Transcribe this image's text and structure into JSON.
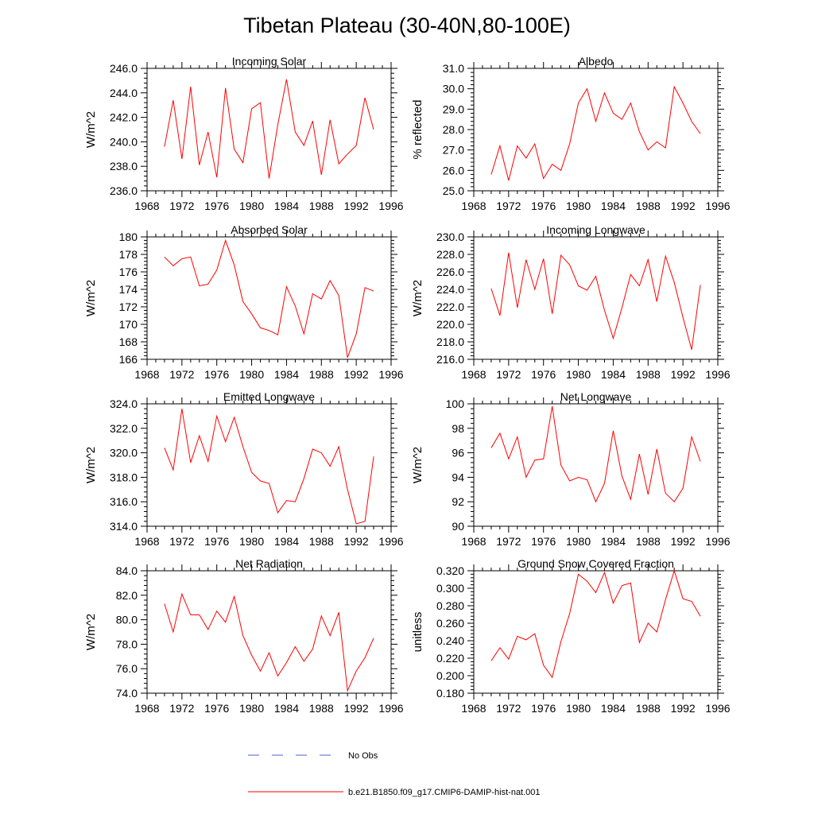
{
  "title": "Tibetan Plateau (30-40N,80-100E)",
  "years": [
    1970,
    1971,
    1972,
    1973,
    1974,
    1975,
    1976,
    1977,
    1978,
    1979,
    1980,
    1981,
    1982,
    1983,
    1984,
    1985,
    1986,
    1987,
    1988,
    1989,
    1990,
    1991,
    1992,
    1993,
    1994
  ],
  "chart_data": [
    {
      "type": "line",
      "title": "Incoming Solar",
      "ylabel": "W/m^2",
      "xlim": [
        1968,
        1996
      ],
      "ylim": [
        236.0,
        246.0
      ],
      "x_ticks": [
        "1968",
        "1972",
        "1976",
        "1980",
        "1984",
        "1988",
        "1992",
        "1996"
      ],
      "y_ticks": [
        "236.0",
        "238.0",
        "240.0",
        "242.0",
        "244.0",
        "246.0"
      ],
      "series": [
        {
          "name": "b.e21.B1850.f09_g17.CMIP6-DAMIP-hist-nat.001",
          "color": "#ff0000",
          "values": [
            239.6,
            243.4,
            238.6,
            244.5,
            238.1,
            240.8,
            237.1,
            244.4,
            239.4,
            238.3,
            242.7,
            243.2,
            237.0,
            241.4,
            245.1,
            240.8,
            239.7,
            241.7,
            237.3,
            241.8,
            238.2,
            239.0,
            239.7,
            243.6,
            241.0
          ]
        }
      ]
    },
    {
      "type": "line",
      "title": "Albedo",
      "ylabel": "% reflected",
      "xlim": [
        1968,
        1996
      ],
      "ylim": [
        25.0,
        31.0
      ],
      "x_ticks": [
        "1968",
        "1972",
        "1976",
        "1980",
        "1984",
        "1988",
        "1992",
        "1996"
      ],
      "y_ticks": [
        "25.0",
        "26.0",
        "27.0",
        "28.0",
        "29.0",
        "30.0",
        "31.0"
      ],
      "series": [
        {
          "name": "b.e21.B1850.f09_g17.CMIP6-DAMIP-hist-nat.001",
          "color": "#ff0000",
          "values": [
            25.8,
            27.2,
            25.5,
            27.2,
            26.6,
            27.3,
            25.6,
            26.3,
            26.0,
            27.3,
            29.3,
            30.0,
            28.4,
            29.8,
            28.8,
            28.5,
            29.3,
            27.9,
            27.0,
            27.4,
            27.1,
            30.1,
            29.3,
            28.4,
            27.8
          ]
        }
      ]
    },
    {
      "type": "line",
      "title": "Absorbed Solar",
      "ylabel": "W/m^2",
      "xlim": [
        1968,
        1996
      ],
      "ylim": [
        166,
        180
      ],
      "x_ticks": [
        "1968",
        "1972",
        "1976",
        "1980",
        "1984",
        "1988",
        "1992",
        "1996"
      ],
      "y_ticks": [
        "166",
        "168",
        "170",
        "172",
        "174",
        "176",
        "178",
        "180"
      ],
      "series": [
        {
          "name": "b.e21.B1850.f09_g17.CMIP6-DAMIP-hist-nat.001",
          "color": "#ff0000",
          "values": [
            177.7,
            176.7,
            177.5,
            177.7,
            174.4,
            174.6,
            176.2,
            179.6,
            176.8,
            172.6,
            171.2,
            169.6,
            169.3,
            168.8,
            174.3,
            172.1,
            168.9,
            173.5,
            172.9,
            175.0,
            173.3,
            166.2,
            168.9,
            174.2,
            173.8
          ]
        }
      ]
    },
    {
      "type": "line",
      "title": "Incoming Longwave",
      "ylabel": "W/m^2",
      "xlim": [
        1968,
        1996
      ],
      "ylim": [
        216.0,
        230.0
      ],
      "x_ticks": [
        "1968",
        "1972",
        "1976",
        "1980",
        "1984",
        "1988",
        "1992",
        "1996"
      ],
      "y_ticks": [
        "216.0",
        "218.0",
        "220.0",
        "222.0",
        "224.0",
        "226.0",
        "228.0",
        "230.0"
      ],
      "series": [
        {
          "name": "b.e21.B1850.f09_g17.CMIP6-DAMIP-hist-nat.001",
          "color": "#ff0000",
          "values": [
            224.1,
            221.0,
            228.2,
            221.9,
            227.4,
            224.0,
            227.5,
            221.2,
            227.9,
            226.8,
            224.4,
            223.9,
            225.5,
            221.6,
            218.4,
            221.9,
            225.7,
            224.4,
            227.4,
            222.6,
            227.8,
            224.8,
            220.8,
            217.1,
            224.5
          ]
        }
      ]
    },
    {
      "type": "line",
      "title": "Emitted Longwave",
      "ylabel": "W/m^2",
      "xlim": [
        1968,
        1996
      ],
      "ylim": [
        314.0,
        324.0
      ],
      "x_ticks": [
        "1968",
        "1972",
        "1976",
        "1980",
        "1984",
        "1988",
        "1992",
        "1996"
      ],
      "y_ticks": [
        "314.0",
        "316.0",
        "318.0",
        "320.0",
        "322.0",
        "324.0"
      ],
      "series": [
        {
          "name": "b.e21.B1850.f09_g17.CMIP6-DAMIP-hist-nat.001",
          "color": "#ff0000",
          "values": [
            320.4,
            318.6,
            323.6,
            319.2,
            321.4,
            319.3,
            323.0,
            320.9,
            322.9,
            320.5,
            318.4,
            317.7,
            317.5,
            315.1,
            316.1,
            316.0,
            317.9,
            320.3,
            320.0,
            318.9,
            320.5,
            317.0,
            314.2,
            314.4,
            319.7
          ]
        }
      ]
    },
    {
      "type": "line",
      "title": "Net Longwave",
      "ylabel": "W/m^2",
      "xlim": [
        1968,
        1996
      ],
      "ylim": [
        90,
        100
      ],
      "x_ticks": [
        "1968",
        "1972",
        "1976",
        "1980",
        "1984",
        "1988",
        "1992",
        "1996"
      ],
      "y_ticks": [
        "90",
        "92",
        "94",
        "96",
        "98",
        "100"
      ],
      "series": [
        {
          "name": "b.e21.B1850.f09_g17.CMIP6-DAMIP-hist-nat.001",
          "color": "#ff0000",
          "values": [
            96.4,
            97.6,
            95.5,
            97.3,
            94.0,
            95.4,
            95.5,
            99.8,
            95.0,
            93.7,
            94.0,
            93.8,
            92.0,
            93.5,
            97.8,
            94.1,
            92.2,
            95.9,
            92.6,
            96.3,
            92.7,
            92.0,
            93.1,
            97.3,
            95.3
          ]
        }
      ]
    },
    {
      "type": "line",
      "title": "Net Radiation",
      "ylabel": "W/m^2",
      "xlim": [
        1968,
        1996
      ],
      "ylim": [
        74.0,
        84.0
      ],
      "x_ticks": [
        "1968",
        "1972",
        "1976",
        "1980",
        "1984",
        "1988",
        "1992",
        "1996"
      ],
      "y_ticks": [
        "74.0",
        "76.0",
        "78.0",
        "80.0",
        "82.0",
        "84.0"
      ],
      "series": [
        {
          "name": "b.e21.B1850.f09_g17.CMIP6-DAMIP-hist-nat.001",
          "color": "#ff0000",
          "values": [
            81.3,
            79.0,
            82.1,
            80.4,
            80.4,
            79.2,
            80.7,
            79.8,
            81.9,
            78.7,
            77.1,
            75.8,
            77.3,
            75.4,
            76.5,
            77.8,
            76.6,
            77.6,
            80.3,
            78.7,
            80.6,
            74.2,
            75.8,
            76.9,
            78.5
          ]
        }
      ]
    },
    {
      "type": "line",
      "title": "Ground Snow Covered Fraction",
      "ylabel": "unitless",
      "xlim": [
        1968,
        1996
      ],
      "ylim": [
        0.18,
        0.32
      ],
      "x_ticks": [
        "1968",
        "1972",
        "1976",
        "1980",
        "1984",
        "1988",
        "1992",
        "1996"
      ],
      "y_ticks": [
        "0.180",
        "0.200",
        "0.220",
        "0.240",
        "0.260",
        "0.280",
        "0.300",
        "0.320"
      ],
      "series": [
        {
          "name": "b.e21.B1850.f09_g17.CMIP6-DAMIP-hist-nat.001",
          "color": "#ff0000",
          "values": [
            0.217,
            0.232,
            0.219,
            0.245,
            0.241,
            0.248,
            0.212,
            0.198,
            0.239,
            0.271,
            0.316,
            0.308,
            0.295,
            0.318,
            0.283,
            0.303,
            0.306,
            0.238,
            0.26,
            0.25,
            0.287,
            0.32,
            0.288,
            0.285,
            0.268
          ]
        }
      ]
    }
  ],
  "legend": [
    {
      "label": "No Obs",
      "color": "#4a5fd0",
      "style": "dashed"
    },
    {
      "label": "b.e21.B1850.f09_g17.CMIP6-DAMIP-hist-nat.001",
      "color": "#ff0000",
      "style": "solid"
    }
  ]
}
